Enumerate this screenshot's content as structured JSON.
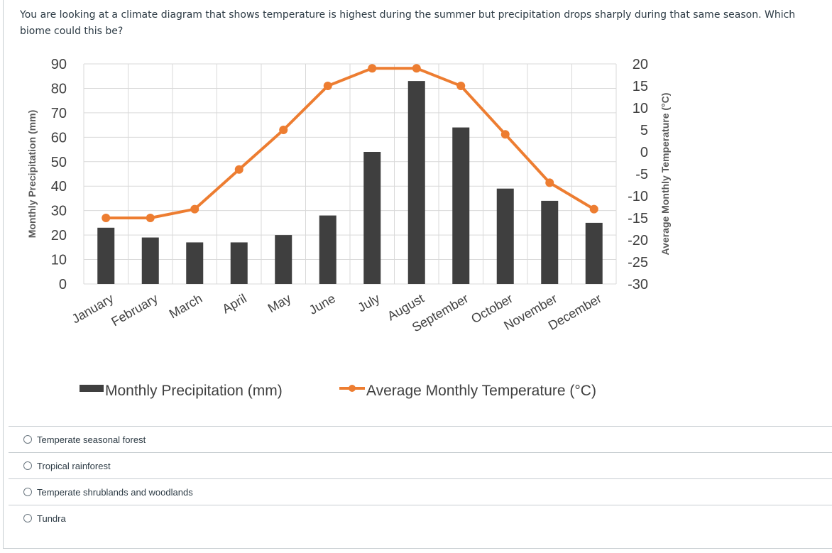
{
  "question": {
    "text": "You are looking at a climate diagram that shows temperature is highest during the summer but precipitation drops sharply during that same season. Which biome could this be?"
  },
  "chart_data": {
    "type": "bar+line",
    "categories": [
      "January",
      "February",
      "March",
      "April",
      "May",
      "June",
      "July",
      "August",
      "September",
      "October",
      "November",
      "December"
    ],
    "series": [
      {
        "name": "Monthly Precipitation (mm)",
        "kind": "bar",
        "axis": "left",
        "color": "#3f3f3f",
        "values": [
          23,
          19,
          17,
          17,
          20,
          28,
          54,
          83,
          64,
          39,
          34,
          25
        ]
      },
      {
        "name": "Average Monthly Temperature (°C)",
        "kind": "line",
        "axis": "right",
        "color": "#ed7d31",
        "values": [
          -15,
          -15,
          -13,
          -4,
          5,
          15,
          19,
          19,
          15,
          4,
          -7,
          -13
        ]
      }
    ],
    "ylabel_left": "Monthly Precipitation (mm)",
    "ylabel_right": "Average Monthly Temperature (°C)",
    "ylim_left": [
      0,
      90
    ],
    "ylim_right": [
      -30,
      20
    ],
    "yticks_left": [
      "90",
      "80",
      "70",
      "60",
      "50",
      "40",
      "30",
      "20",
      "10",
      "0"
    ],
    "yticks_right": [
      "20",
      "15",
      "10",
      "5",
      "0",
      "-5",
      "-10",
      "-15",
      "-20",
      "-25",
      "-30"
    ],
    "legend": [
      "Monthly Precipitation (mm)",
      "Average Monthly Temperature (°C)"
    ],
    "grid": true
  },
  "answers": [
    {
      "label": "Temperate seasonal forest"
    },
    {
      "label": "Tropical rainforest"
    },
    {
      "label": "Temperate shrublands and woodlands"
    },
    {
      "label": "Tundra"
    }
  ]
}
